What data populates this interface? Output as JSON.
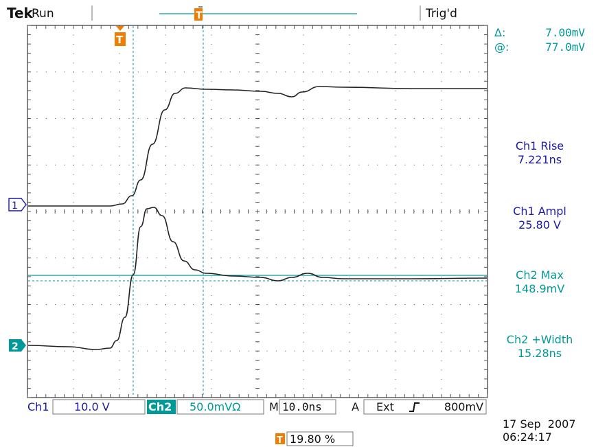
{
  "header": {
    "brand": "Tek",
    "run_state": "Run",
    "trigger_status": "Trig'd"
  },
  "cursors": {
    "delta_label": "Δ:",
    "delta_value": "7.00mV",
    "at_label": "@:",
    "at_value": "77.0mV"
  },
  "measurements": [
    {
      "label": "Ch1 Rise",
      "value": "7.221ns",
      "color": "#1a1aa6"
    },
    {
      "label": "Ch1 Ampl",
      "value": "25.80 V",
      "color": "#1a1aa6"
    },
    {
      "label": "Ch2 Max",
      "value": "148.9mV",
      "color": "#009999"
    },
    {
      "label": "Ch2 +Width",
      "value": "15.28ns",
      "color": "#009999"
    }
  ],
  "channel_markers": {
    "ch1": "1",
    "ch2": "2"
  },
  "trigger_marker": "T",
  "status_bar": {
    "ch1_label": "Ch1",
    "ch1_scale": "10.0 V",
    "ch2_label": "Ch2",
    "ch2_scale": "50.0mVΩ",
    "timebase_label": "M",
    "timebase_value": "10.0ns",
    "trigger_channel_label": "A",
    "trigger_source": "Ext",
    "trigger_slope_icon": "rising-edge-icon",
    "trigger_level": "800mV"
  },
  "trigger_position": "19.80 %",
  "timestamp": {
    "date": "17 Sep  2007",
    "time": "06:24:17"
  },
  "colors": {
    "ch1": "#1a1aa6",
    "ch2": "#009999",
    "trigger": "#f07d00",
    "trace": "#222222",
    "grid": "#555555"
  }
}
